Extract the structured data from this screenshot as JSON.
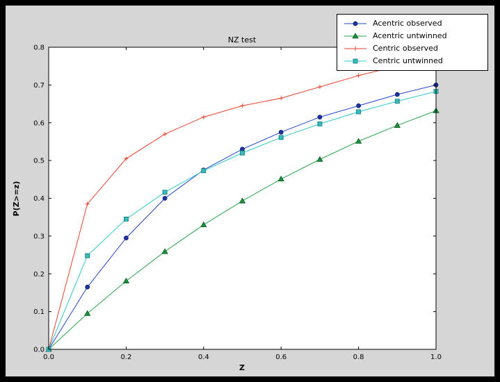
{
  "figure": {
    "colors": {
      "outer_bg": "#000000",
      "figure_bg": "#d6d6d6",
      "plot_bg": "#ffffff",
      "axis": "#000000",
      "text": "#000000",
      "legend_bg": "#ffffff",
      "legend_border": "#000000"
    }
  },
  "chart_data": {
    "type": "line",
    "title": "NZ test",
    "xlabel": "Z",
    "ylabel": "P(Z>=z)",
    "xlim": [
      0.0,
      1.0
    ],
    "ylim": [
      0.0,
      0.8
    ],
    "grid": false,
    "legend_position": "upper right",
    "x_ticks": [
      0.0,
      0.2,
      0.4,
      0.6,
      0.8,
      1.0
    ],
    "x_tick_labels": [
      "0.0",
      "0.2",
      "0.4",
      "0.6",
      "0.8",
      "1.0"
    ],
    "y_ticks": [
      0.0,
      0.1,
      0.2,
      0.3,
      0.4,
      0.5,
      0.6,
      0.7,
      0.8
    ],
    "y_tick_labels": [
      "0.0",
      "0.1",
      "0.2",
      "0.3",
      "0.4",
      "0.5",
      "0.6",
      "0.7",
      "0.8"
    ],
    "x": [
      0.0,
      0.1,
      0.2,
      0.3,
      0.4,
      0.5,
      0.6,
      0.7,
      0.8,
      0.9,
      1.0
    ],
    "series": [
      {
        "name": "Acentric observed",
        "color": "#2244cc",
        "marker": "circle",
        "marker_fill": "#1a35a8",
        "marker_edge": "#101b66",
        "values": [
          0.0,
          0.165,
          0.295,
          0.4,
          0.475,
          0.53,
          0.575,
          0.615,
          0.645,
          0.675,
          0.7
        ]
      },
      {
        "name": "Acentric untwinned",
        "color": "#27a348",
        "marker": "triangle",
        "marker_fill": "#1d8f3c",
        "marker_edge": "#0c5c22",
        "values": [
          0.0,
          0.095,
          0.181,
          0.259,
          0.33,
          0.393,
          0.451,
          0.503,
          0.551,
          0.593,
          0.632
        ]
      },
      {
        "name": "Centric observed",
        "color": "#e8412c",
        "marker": "plus",
        "marker_fill": "#e8412c",
        "marker_edge": "#e8412c",
        "values": [
          0.0,
          0.385,
          0.505,
          0.57,
          0.615,
          0.645,
          0.665,
          0.695,
          0.725,
          0.75,
          0.77
        ]
      },
      {
        "name": "Centric untwinned",
        "color": "#2fc9c9",
        "marker": "square",
        "marker_fill": "#35bdbd",
        "marker_edge": "#1b7f7f",
        "values": [
          0.0,
          0.248,
          0.345,
          0.416,
          0.473,
          0.52,
          0.561,
          0.597,
          0.629,
          0.657,
          0.683
        ]
      }
    ]
  }
}
